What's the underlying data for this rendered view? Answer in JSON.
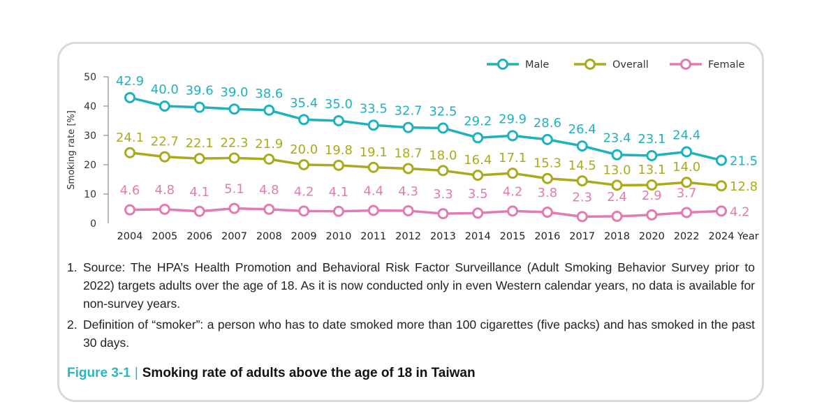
{
  "chart_data": {
    "type": "line",
    "categories": [
      "2004",
      "2005",
      "2006",
      "2007",
      "2008",
      "2009",
      "2010",
      "2011",
      "2012",
      "2013",
      "2014",
      "2015",
      "2016",
      "2017",
      "2018",
      "2020",
      "2022",
      "2024"
    ],
    "x_suffix": "Year",
    "ylabel": "Smoking rate [%]",
    "ylim": [
      0,
      50
    ],
    "yticks": [
      0,
      10,
      20,
      30,
      40,
      50
    ],
    "legend_position": "top-right",
    "series": [
      {
        "name": "Male",
        "color": "#1fb2bd",
        "values": [
          42.9,
          40.0,
          39.6,
          39.0,
          38.6,
          35.4,
          35.0,
          33.5,
          32.7,
          32.5,
          29.2,
          29.9,
          28.6,
          26.4,
          23.4,
          23.1,
          24.4,
          21.5
        ],
        "labels": [
          "42.9",
          "40.0",
          "39.6",
          "39.0",
          "38.6",
          "35.4",
          "35.0",
          "33.5",
          "32.7",
          "32.5",
          "29.2",
          "29.9",
          "28.6",
          "26.4",
          "23.4",
          "23.1",
          "24.4",
          "21.5"
        ]
      },
      {
        "name": "Overall",
        "color": "#a9ab1d",
        "values": [
          24.1,
          22.7,
          22.1,
          22.3,
          21.9,
          20.0,
          19.8,
          19.1,
          18.7,
          18.0,
          16.4,
          17.1,
          15.3,
          14.5,
          13.0,
          13.1,
          14.0,
          12.8
        ],
        "labels": [
          "24.1",
          "22.7",
          "22.1",
          "22.3",
          "21.9",
          "20.0",
          "19.8",
          "19.1",
          "18.7",
          "18.0",
          "16.4",
          "17.1",
          "15.3",
          "14.5",
          "13.0",
          "13.1",
          "14.0",
          "12.8"
        ]
      },
      {
        "name": "Female",
        "color": "#e27bb1",
        "values": [
          4.6,
          4.8,
          4.1,
          5.1,
          4.8,
          4.2,
          4.1,
          4.4,
          4.3,
          3.3,
          3.5,
          4.2,
          3.8,
          2.3,
          2.4,
          2.9,
          3.7,
          4.2
        ],
        "labels": [
          "4.6",
          "4.8",
          "4.1",
          "5.1",
          "4.8",
          "4.2",
          "4.1",
          "4.4",
          "4.3",
          "3.3",
          "3.5",
          "4.2",
          "3.8",
          "2.3",
          "2.4",
          "2.9",
          "3.7",
          "4.2"
        ]
      }
    ]
  },
  "notes": [
    {
      "num": "1.",
      "text": "Source: The HPA’s Health Promotion and Behavioral Risk Factor Surveillance (Adult Smoking Behavior Survey prior to 2022) targets adults over the age of 18. As it is now conducted only in even Western calendar years, no data is available for non-survey years."
    },
    {
      "num": "2.",
      "text": "Definition of “smoker”: a person who has to date smoked more than 100 cigarettes (five packs) and has smoked in the past 30 days."
    }
  ],
  "caption": {
    "figure": "Figure 3-1",
    "separator": "|",
    "title": "Smoking rate of adults above the age of 18 in Taiwan"
  }
}
